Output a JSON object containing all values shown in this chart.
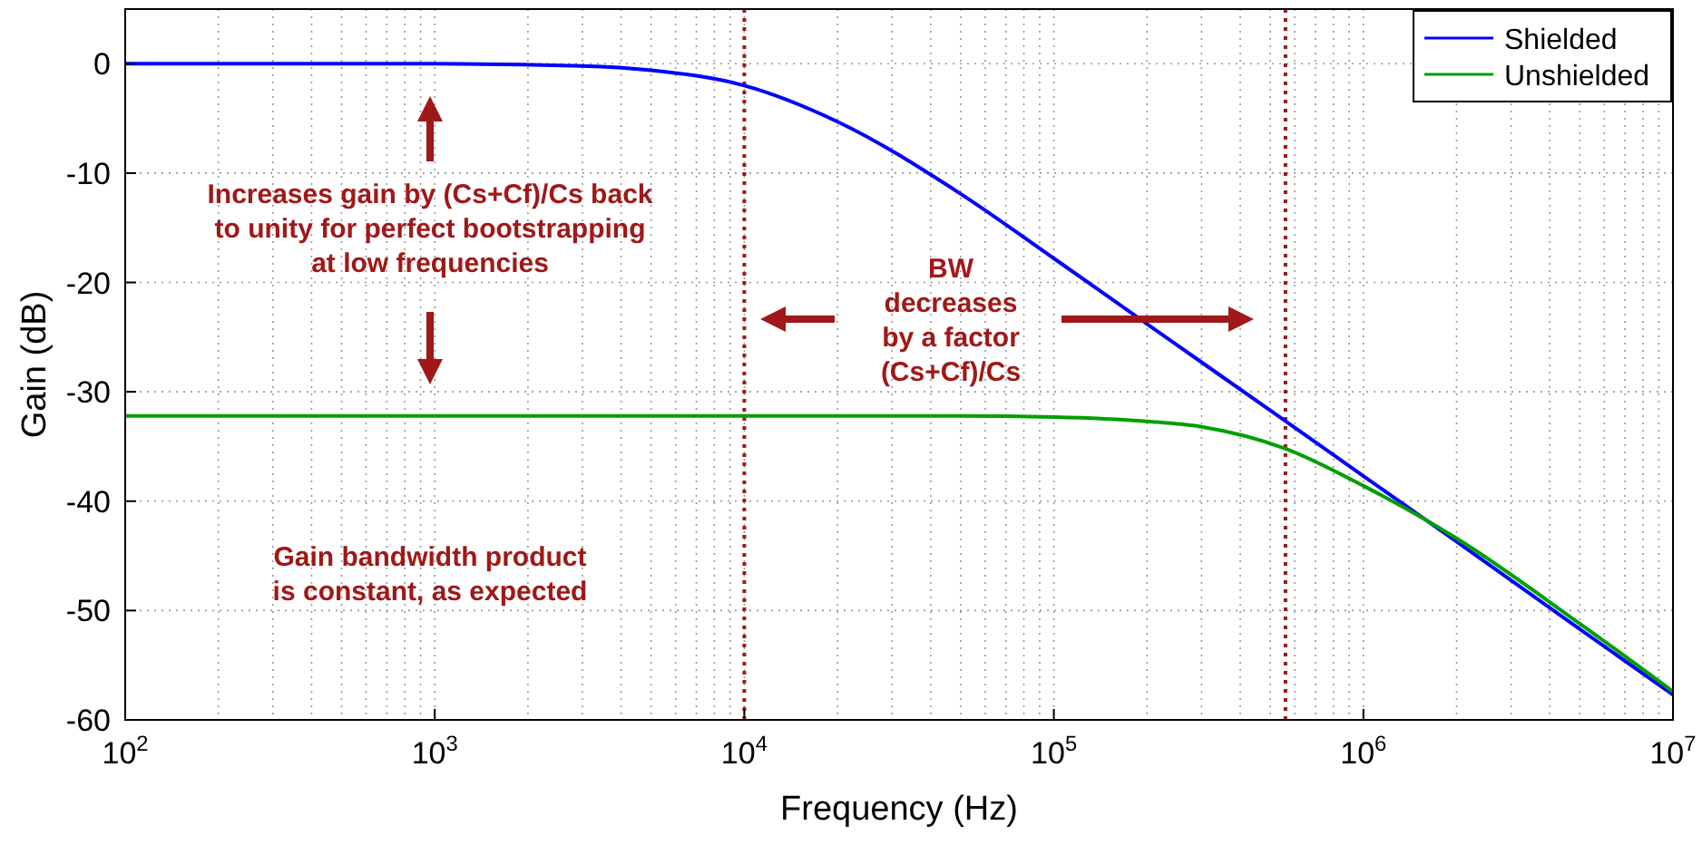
{
  "chart_data": {
    "type": "line",
    "xlabel": "Frequency (Hz)",
    "ylabel": "Gain (dB)",
    "log": "x",
    "grid": true,
    "legend": "top right",
    "marker": "none",
    "line_style": "solid",
    "xlim": [
      100,
      10000000
    ],
    "ylim": [
      -60,
      5
    ],
    "xticks": [
      {
        "value": 100,
        "label": "10$^{2}$"
      },
      {
        "value": 1000,
        "label": "10$^{3}$"
      },
      {
        "value": 10000,
        "label": "10$^{4}$"
      },
      {
        "value": 100000,
        "label": "10$^{5}$"
      },
      {
        "value": 1000000,
        "label": "10$^{6}$"
      },
      {
        "value": 10000000,
        "label": "10$^{7}$"
      }
    ],
    "yticks": [
      -60,
      -50,
      -40,
      -30,
      -20,
      -10,
      0
    ],
    "series": [
      {
        "name": "Shielded",
        "color": "#0000ff",
        "x": [
          100,
          1000,
          3000,
          5000,
          10000,
          20000,
          50000,
          100000,
          200000,
          500000,
          1000000,
          2000000,
          5000000,
          10000000
        ],
        "values": [
          0,
          0,
          -0.2,
          -0.6,
          -2,
          -5.3,
          -11.9,
          -17.8,
          -23.8,
          -31.7,
          -37.7,
          -43.7,
          -51.7,
          -57.7
        ]
      },
      {
        "name": "Unshielded",
        "color": "#00a000",
        "x": [
          100,
          10000,
          50000,
          100000,
          200000,
          300000,
          560000,
          1000000,
          2000000,
          5000000,
          10000000
        ],
        "values": [
          -32.2,
          -32.2,
          -32.2,
          -32.3,
          -32.7,
          -33.2,
          -35.2,
          -38.6,
          -43.4,
          -51.2,
          -57.4
        ]
      }
    ],
    "ref_lines": [
      {
        "axis": "x",
        "value": 10000,
        "color": "#a01818",
        "line_style": "dotted"
      },
      {
        "axis": "x",
        "value": 560000,
        "color": "#a01818",
        "line_style": "dotted"
      }
    ],
    "annotations": [
      "Increases gain by (Cs+Cf)/Cs back\nto unity for perfect bootstrapping\nat low frequencies",
      "BW\ndecreases\nby a factor\n(Cs+Cf)/Cs",
      "Gain bandwidth product\nis constant, as expected"
    ]
  }
}
